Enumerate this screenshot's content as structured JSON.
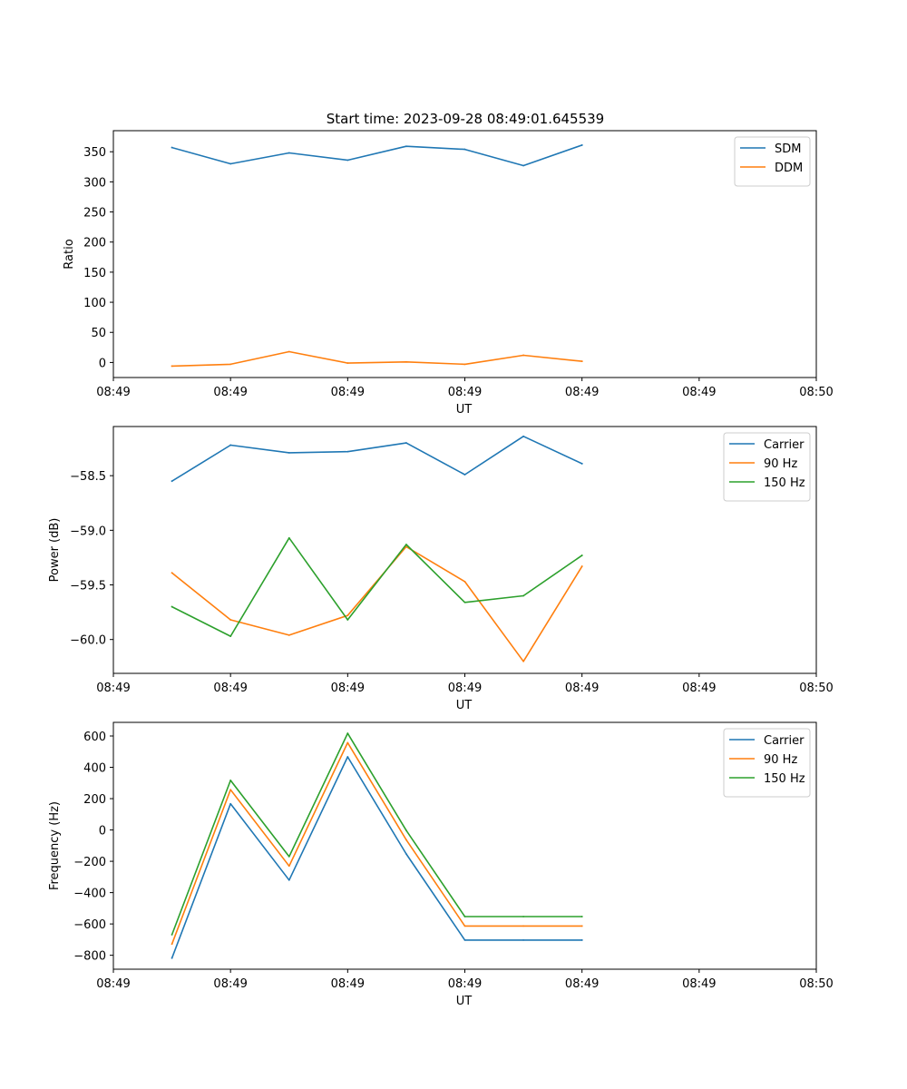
{
  "figure": {
    "title": "Start time: 2023-09-28 08:49:01.645539"
  },
  "colors": {
    "blue": "#1f77b4",
    "orange": "#ff7f0e",
    "green": "#2ca02c"
  },
  "chart_data": [
    {
      "type": "line",
      "title": "Start time: 2023-09-28 08:49:01.645539",
      "xlabel": "UT",
      "ylabel": "Ratio",
      "xlim": [
        0,
        12
      ],
      "ylim": [
        -25,
        385
      ],
      "x": [
        1,
        2,
        3,
        4,
        5,
        6,
        7,
        8
      ],
      "x_ticks": [
        0,
        2,
        4,
        6,
        8,
        10,
        12
      ],
      "x_tick_labels": [
        "08:49",
        "08:49",
        "08:49",
        "08:49",
        "08:49",
        "08:49",
        "08:50"
      ],
      "y_ticks": [
        0,
        50,
        100,
        150,
        200,
        250,
        300,
        350
      ],
      "y_tick_labels": [
        "0",
        "50",
        "100",
        "150",
        "200",
        "250",
        "300",
        "350"
      ],
      "legend_position": "top-right",
      "series": [
        {
          "name": "SDM",
          "color": "#1f77b4",
          "values": [
            357,
            330,
            348,
            336,
            359,
            354,
            327,
            361
          ]
        },
        {
          "name": "DDM",
          "color": "#ff7f0e",
          "values": [
            -6,
            -3,
            18,
            -1,
            1,
            -3,
            12,
            2
          ]
        }
      ]
    },
    {
      "type": "line",
      "title": "",
      "xlabel": "UT",
      "ylabel": "Power (dB)",
      "xlim": [
        0,
        12
      ],
      "ylim": [
        -60.31,
        -58.05
      ],
      "x": [
        1,
        2,
        3,
        4,
        5,
        6,
        7,
        8
      ],
      "x_ticks": [
        0,
        2,
        4,
        6,
        8,
        10,
        12
      ],
      "x_tick_labels": [
        "08:49",
        "08:49",
        "08:49",
        "08:49",
        "08:49",
        "08:49",
        "08:50"
      ],
      "y_ticks": [
        -60.0,
        -59.5,
        -59.0,
        -58.5
      ],
      "y_tick_labels": [
        "−60.0",
        "−59.5",
        "−59.0",
        "−58.5"
      ],
      "legend_position": "top-right",
      "series": [
        {
          "name": "Carrier",
          "color": "#1f77b4",
          "values": [
            -58.55,
            -58.22,
            -58.29,
            -58.28,
            -58.2,
            -58.49,
            -58.14,
            -58.39
          ]
        },
        {
          "name": "90 Hz",
          "color": "#ff7f0e",
          "values": [
            -59.39,
            -59.82,
            -59.96,
            -59.78,
            -59.15,
            -59.47,
            -60.2,
            -59.33
          ]
        },
        {
          "name": "150 Hz",
          "color": "#2ca02c",
          "values": [
            -59.7,
            -59.97,
            -59.07,
            -59.82,
            -59.13,
            -59.66,
            -59.6,
            -59.23
          ]
        }
      ]
    },
    {
      "type": "line",
      "title": "",
      "xlabel": "UT",
      "ylabel": "Frequency (Hz)",
      "xlim": [
        0,
        12
      ],
      "ylim": [
        -889,
        687
      ],
      "x": [
        1,
        2,
        3,
        4,
        5,
        6,
        7,
        8
      ],
      "x_ticks": [
        0,
        2,
        4,
        6,
        8,
        10,
        12
      ],
      "x_tick_labels": [
        "08:49",
        "08:49",
        "08:49",
        "08:49",
        "08:49",
        "08:49",
        "08:50"
      ],
      "y_ticks": [
        -800,
        -600,
        -400,
        -200,
        0,
        200,
        400,
        600
      ],
      "y_tick_labels": [
        "−800",
        "−600",
        "−400",
        "−200",
        "0",
        "200",
        "400",
        "600"
      ],
      "legend_position": "top-right",
      "series": [
        {
          "name": "Carrier",
          "color": "#1f77b4",
          "values": [
            -818,
            167,
            -320,
            467,
            -153,
            -703,
            -703,
            -703
          ]
        },
        {
          "name": "90 Hz",
          "color": "#ff7f0e",
          "values": [
            -728,
            257,
            -230,
            557,
            -63,
            -613,
            -613,
            -613
          ]
        },
        {
          "name": "150 Hz",
          "color": "#2ca02c",
          "values": [
            -668,
            317,
            -170,
            617,
            -3,
            -553,
            -553,
            -553
          ]
        }
      ]
    }
  ]
}
